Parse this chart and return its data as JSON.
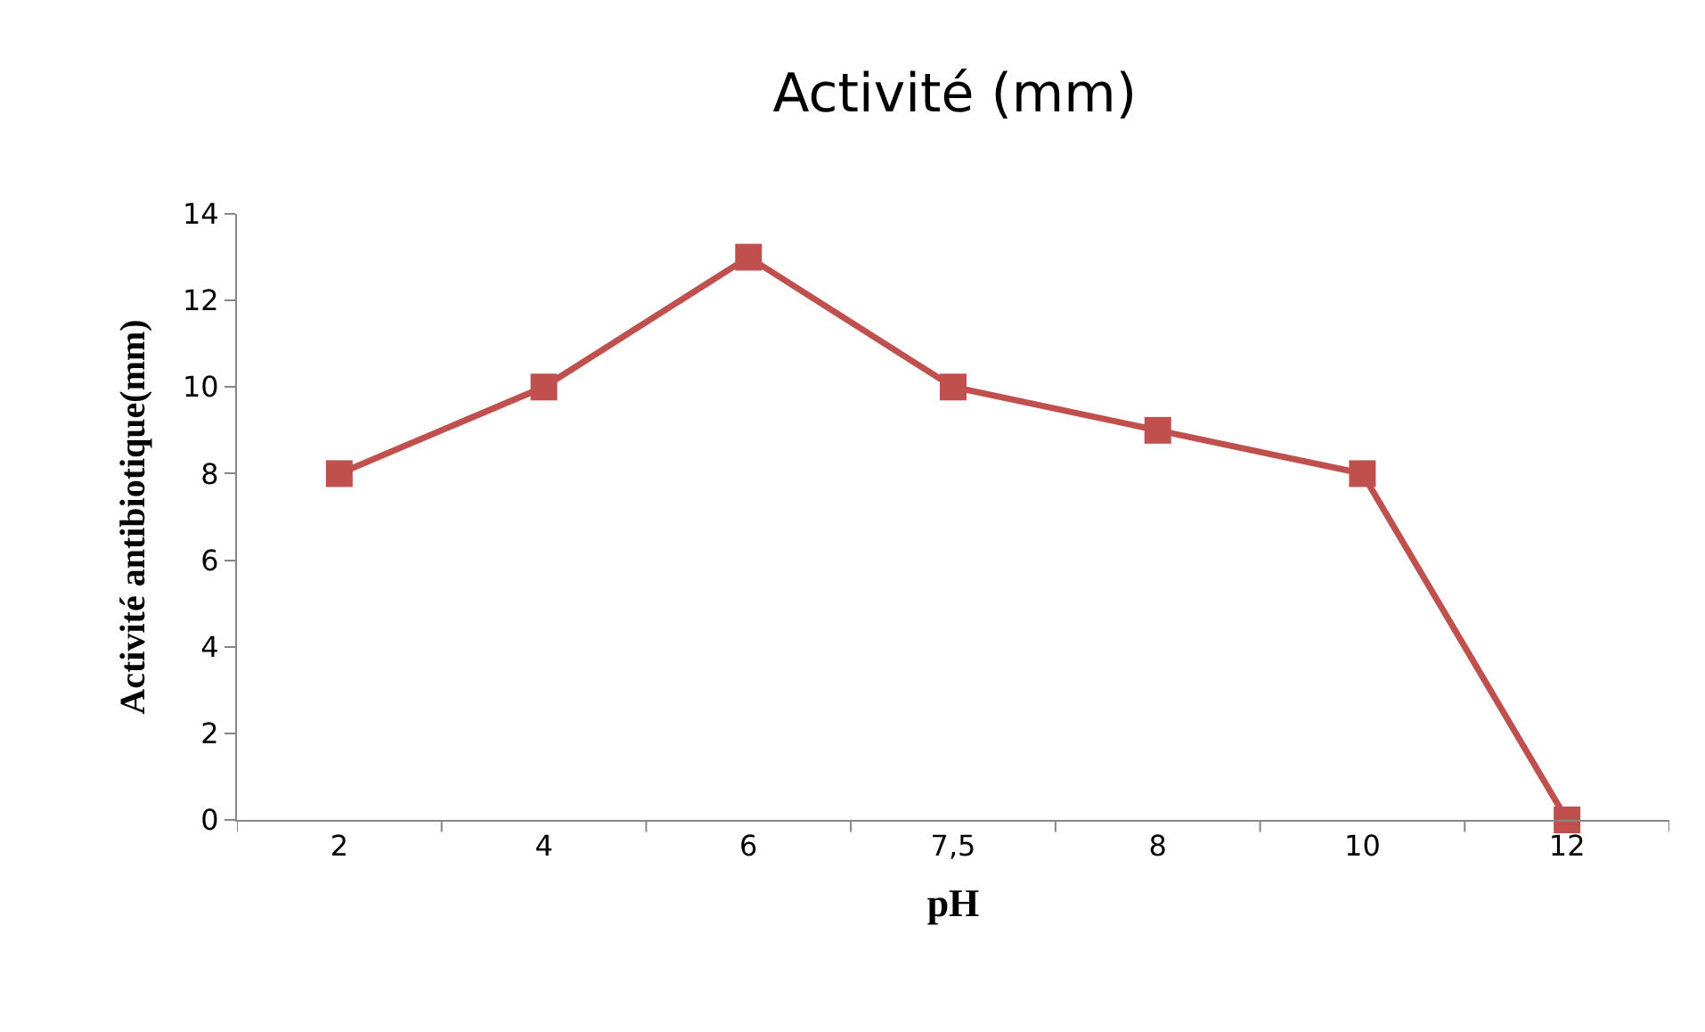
{
  "chart_data": {
    "type": "line",
    "title": "Activité (mm)",
    "xlabel": "pH",
    "ylabel": "Activité antibiotique(mm)",
    "categories": [
      "2",
      "4",
      "6",
      "7,5",
      "8",
      "10",
      "12"
    ],
    "series": [
      {
        "color": "#c0504d",
        "values": [
          8,
          10,
          13,
          10,
          9,
          8,
          0
        ]
      }
    ],
    "ylim": [
      0,
      14
    ],
    "yticks": [
      0,
      2,
      4,
      6,
      8,
      10,
      12,
      14
    ],
    "marker": "square",
    "line_style": "solid"
  }
}
